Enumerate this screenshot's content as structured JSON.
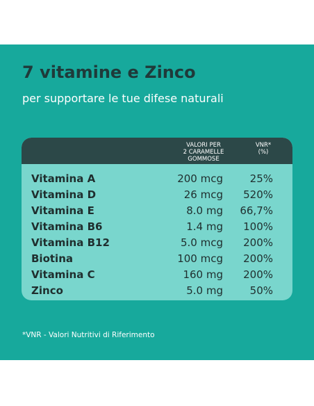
{
  "title": "7 vitamine e Zinco",
  "subtitle": "per supportare le tue difese naturali",
  "table": {
    "header_amount": "VALORI PER\n2 CARAMELLE\nGOMMOSE",
    "header_vnr": "VNR*\n(%)",
    "rows": [
      {
        "name": "Vitamina A",
        "amount": "200 mcg",
        "vnr": "25%"
      },
      {
        "name": "Vitamina D",
        "amount": "26 mcg",
        "vnr": "520%"
      },
      {
        "name": "Vitamina E",
        "amount": "8.0 mg",
        "vnr": "66,7%"
      },
      {
        "name": "Vitamina B6",
        "amount": "1.4 mg",
        "vnr": "100%"
      },
      {
        "name": "Vitamina B12",
        "amount": "5.0 mcg",
        "vnr": "200%"
      },
      {
        "name": "Biotina",
        "amount": "100 mcg",
        "vnr": "200%"
      },
      {
        "name": "Vitamina C",
        "amount": "160 mg",
        "vnr": "200%"
      },
      {
        "name": "Zinco",
        "amount": "5.0 mg",
        "vnr": "50%"
      }
    ]
  },
  "footnote": "*VNR - Valori Nutritivi di Riferimento",
  "colors": {
    "panel": "#17a99c",
    "table_body": "#79d6cd",
    "table_header": "#2c4848",
    "title": "#1f3a3a"
  }
}
